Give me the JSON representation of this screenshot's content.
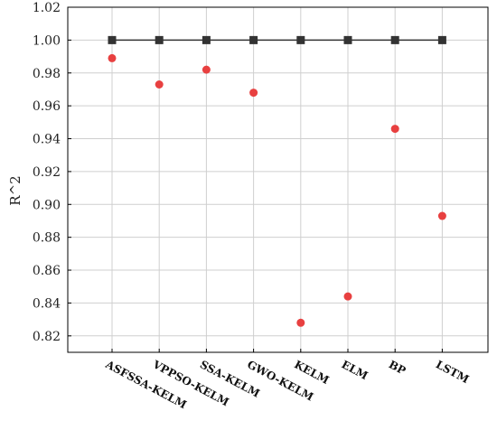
{
  "chart_data": {
    "type": "scatter",
    "title": "",
    "xlabel": "",
    "ylabel": "R^2",
    "ylim": [
      0.81,
      1.02
    ],
    "yticks": [
      0.82,
      0.84,
      0.86,
      0.88,
      0.9,
      0.92,
      0.94,
      0.96,
      0.98,
      1.0,
      1.02
    ],
    "ytick_labels": [
      "0.82",
      "0.84",
      "0.86",
      "0.88",
      "0.90",
      "0.92",
      "0.94",
      "0.96",
      "0.98",
      "1.00",
      "1.02"
    ],
    "categories": [
      "ASFSSA-KELM",
      "VPPSO-KELM",
      "SSA-KELM",
      "GWO-KELM",
      "KELM",
      "ELM",
      "BP",
      "LSTM"
    ],
    "grid": true,
    "series": [
      {
        "kind": "line-marker",
        "marker": "square",
        "color": "#333333",
        "values": [
          1.0,
          1.0,
          1.0,
          1.0,
          1.0,
          1.0,
          1.0,
          1.0
        ]
      },
      {
        "kind": "scatter",
        "marker": "circle",
        "color": "#e84040",
        "values": [
          0.989,
          0.973,
          0.982,
          0.968,
          0.828,
          0.844,
          0.946,
          0.893
        ]
      }
    ]
  }
}
